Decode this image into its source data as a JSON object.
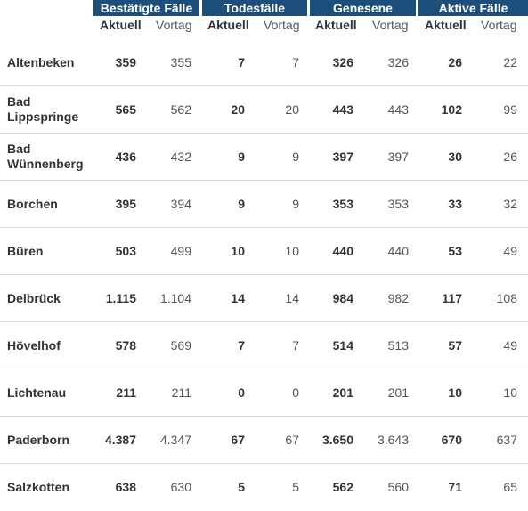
{
  "groups": [
    "Bestätigte Fälle",
    "Todesfälle",
    "Genesene",
    "Aktive Fälle"
  ],
  "subheaders": {
    "current": "Aktuell",
    "previous": "Vortag"
  },
  "rows": [
    {
      "name": "Altenbeken",
      "values": [
        "359",
        "355",
        "7",
        "7",
        "326",
        "326",
        "26",
        "22"
      ]
    },
    {
      "name": "Bad Lippspringe",
      "values": [
        "565",
        "562",
        "20",
        "20",
        "443",
        "443",
        "102",
        "99"
      ]
    },
    {
      "name": "Bad Wünnenberg",
      "values": [
        "436",
        "432",
        "9",
        "9",
        "397",
        "397",
        "30",
        "26"
      ]
    },
    {
      "name": "Borchen",
      "values": [
        "395",
        "394",
        "9",
        "9",
        "353",
        "353",
        "33",
        "32"
      ]
    },
    {
      "name": "Büren",
      "values": [
        "503",
        "499",
        "10",
        "10",
        "440",
        "440",
        "53",
        "49"
      ]
    },
    {
      "name": "Delbrück",
      "values": [
        "1.115",
        "1.104",
        "14",
        "14",
        "984",
        "982",
        "117",
        "108"
      ]
    },
    {
      "name": "Hövelhof",
      "values": [
        "578",
        "569",
        "7",
        "7",
        "514",
        "513",
        "57",
        "49"
      ]
    },
    {
      "name": "Lichtenau",
      "values": [
        "211",
        "211",
        "0",
        "0",
        "201",
        "201",
        "10",
        "10"
      ]
    },
    {
      "name": "Paderborn",
      "values": [
        "4.387",
        "4.347",
        "67",
        "67",
        "3.650",
        "3.643",
        "670",
        "637"
      ]
    },
    {
      "name": "Salzkotten",
      "values": [
        "638",
        "630",
        "5",
        "5",
        "562",
        "560",
        "71",
        "65"
      ]
    }
  ],
  "colors": {
    "header_bg": "#1d4f7c",
    "header_text": "#ffffff",
    "divider": "#d9d9d9"
  }
}
